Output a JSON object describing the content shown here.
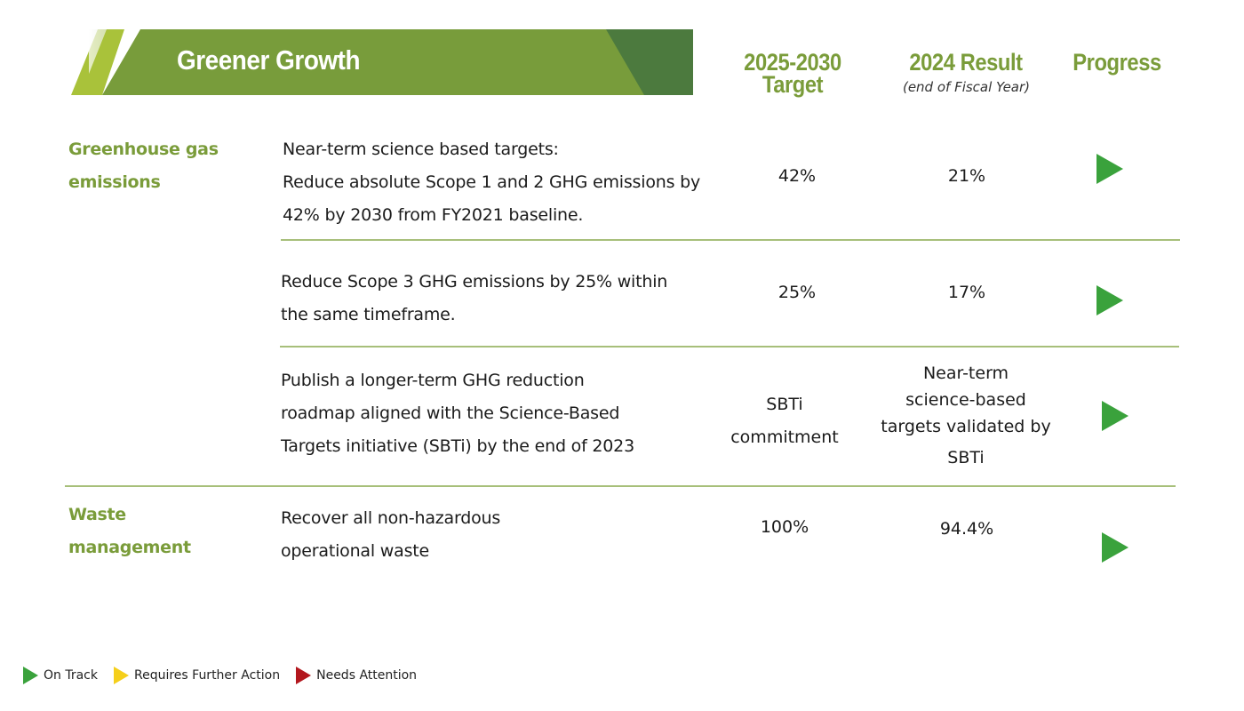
{
  "banner": {
    "title": "Greener Growth"
  },
  "headers": {
    "target_line1": "2025-2030",
    "target_line2": "Target",
    "result": "2024 Result",
    "result_sub": "(end of Fiscal Year)",
    "progress": "Progress"
  },
  "categories": {
    "ghg": [
      "Greenhouse gas",
      "emissions"
    ],
    "waste": [
      "Waste",
      "management"
    ]
  },
  "rows": [
    {
      "desc": [
        "Near-term science based targets:",
        "Reduce absolute Scope 1 and 2 GHG emissions by",
        "42% by 2030 from FY2021 baseline."
      ],
      "target": [
        "42%"
      ],
      "result": [
        "21%"
      ],
      "status": "on-track"
    },
    {
      "desc": [
        "Reduce Scope 3 GHG emissions by 25% within",
        "the same timeframe."
      ],
      "target": [
        "25%"
      ],
      "result": [
        "17%"
      ],
      "status": "on-track"
    },
    {
      "desc": [
        "Publish a longer-term GHG reduction",
        "roadmap aligned with the Science-Based",
        "Targets initiative (SBTi) by the end of 2023"
      ],
      "target": [
        "SBTi",
        "commitment"
      ],
      "result": [
        "Near-term",
        "science-based",
        "targets validated by",
        "SBTi"
      ],
      "status": "on-track"
    },
    {
      "desc": [
        "Recover all non-hazardous",
        "operational waste"
      ],
      "target": [
        "100%"
      ],
      "result": [
        "94.4%"
      ],
      "status": "on-track"
    }
  ],
  "legend": [
    {
      "label": "On Track",
      "color": "#3aa23c"
    },
    {
      "label": "Requires Further Action",
      "color": "#f5cf1b"
    },
    {
      "label": "Needs Attention",
      "color": "#b3171e"
    }
  ],
  "colors": {
    "accent_green": "#7a9c3a",
    "on_track": "#3aa23c"
  }
}
